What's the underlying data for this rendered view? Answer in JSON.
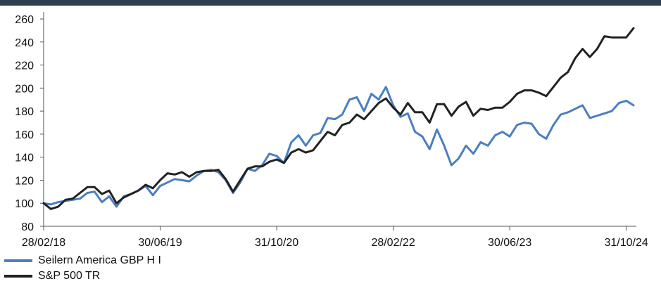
{
  "chart_data": {
    "type": "line",
    "title": "",
    "xlabel": "",
    "ylabel": "",
    "ylim": [
      80,
      260
    ],
    "yticks": [
      80,
      100,
      120,
      140,
      160,
      180,
      200,
      220,
      240,
      260
    ],
    "xticks": [
      "28/02/18",
      "30/06/19",
      "31/10/20",
      "28/02/22",
      "30/06/23",
      "31/10/24"
    ],
    "grid": false,
    "legend": "bottom-left",
    "series": [
      {
        "name": "Seilern America GBP H I",
        "color": "#4a7fc1",
        "values": [
          100,
          99,
          101,
          102,
          103,
          104,
          109,
          110,
          101,
          106,
          97,
          106,
          108,
          111,
          115,
          107,
          115,
          118,
          121,
          120,
          119,
          124,
          128,
          129,
          127,
          120,
          109,
          118,
          130,
          128,
          133,
          143,
          141,
          135,
          153,
          159,
          150,
          159,
          161,
          174,
          173,
          177,
          190,
          192,
          180,
          195,
          190,
          201,
          185,
          175,
          178,
          162,
          158,
          147,
          164,
          150,
          133,
          139,
          150,
          143,
          153,
          150,
          159,
          162,
          158,
          168,
          170,
          169,
          160,
          156,
          168,
          177,
          179,
          182,
          185,
          174,
          176,
          178,
          180,
          187,
          189,
          185
        ]
      },
      {
        "name": "S&P 500 TR",
        "color": "#222222",
        "values": [
          100,
          95,
          97,
          103,
          104,
          109,
          114,
          114,
          108,
          111,
          100,
          105,
          108,
          111,
          116,
          113,
          120,
          126,
          125,
          127,
          123,
          127,
          128,
          128,
          129,
          121,
          110,
          120,
          130,
          132,
          132,
          136,
          138,
          135,
          144,
          147,
          144,
          146,
          154,
          162,
          159,
          168,
          170,
          177,
          173,
          180,
          187,
          191,
          183,
          177,
          187,
          179,
          179,
          170,
          186,
          186,
          176,
          184,
          188,
          176,
          182,
          181,
          183,
          183,
          188,
          195,
          198,
          198,
          196,
          193,
          201,
          209,
          214,
          226,
          234,
          227,
          234,
          245,
          244,
          244,
          244,
          252
        ]
      }
    ]
  }
}
